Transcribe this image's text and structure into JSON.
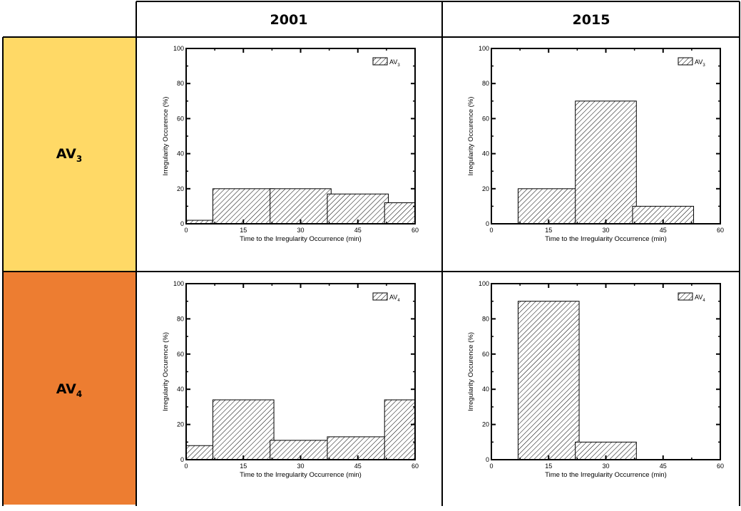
{
  "header": {
    "col_2001": "2001",
    "col_2015": "2015"
  },
  "rows": [
    {
      "label_main": "AV",
      "label_sub": "3",
      "color": "#FFD966"
    },
    {
      "label_main": "AV",
      "label_sub": "4",
      "color": "#ED7D31"
    }
  ],
  "chart_data": [
    {
      "id": "av3-2001",
      "type": "bar",
      "legend": {
        "main": "AV",
        "sub": "3",
        "position": "top-right"
      },
      "x": [
        0,
        15,
        30,
        45,
        60
      ],
      "values": [
        2,
        20,
        20,
        17,
        12
      ],
      "xlabel": "Time to the Irregularity Occurrence (min)",
      "ylabel": "Irregularity Occurence (%)",
      "xticks": [
        "0",
        "15",
        "30",
        "45",
        "60"
      ],
      "yticks": [
        "0",
        "20",
        "40",
        "60",
        "80",
        "100"
      ],
      "xlim": [
        0,
        60
      ],
      "ylim": [
        0,
        100
      ]
    },
    {
      "id": "av3-2015",
      "type": "bar",
      "legend": {
        "main": "AV",
        "sub": "3",
        "position": "top-right"
      },
      "x": [
        15,
        30,
        45
      ],
      "values": [
        20,
        70,
        10
      ],
      "xlabel": "Time to the Irregularity Occurrence (min)",
      "ylabel": "Irregularity Occurence (%)",
      "xticks": [
        "0",
        "15",
        "30",
        "45",
        "60"
      ],
      "yticks": [
        "0",
        "20",
        "40",
        "60",
        "80",
        "100"
      ],
      "xlim": [
        0,
        60
      ],
      "ylim": [
        0,
        100
      ]
    },
    {
      "id": "av4-2001",
      "type": "bar",
      "legend": {
        "main": "AV",
        "sub": "4",
        "position": "top-right"
      },
      "x": [
        0,
        15,
        30,
        45,
        60
      ],
      "values": [
        8,
        34,
        11,
        13,
        34
      ],
      "xlabel": "Time to the Irregularity Occurrence (min)",
      "ylabel": "Irregularity Occurence (%)",
      "xticks": [
        "0",
        "15",
        "30",
        "45",
        "60"
      ],
      "yticks": [
        "0",
        "20",
        "40",
        "60",
        "80",
        "100"
      ],
      "xlim": [
        0,
        60
      ],
      "ylim": [
        0,
        100
      ]
    },
    {
      "id": "av4-2015",
      "type": "bar",
      "legend": {
        "main": "AV",
        "sub": "4",
        "position": "top-right"
      },
      "x": [
        15,
        30
      ],
      "values": [
        90,
        10
      ],
      "xlabel": "Time to the Irregularity Occurrence (min)",
      "ylabel": "Irregularity Occurence (%)",
      "xticks": [
        "0",
        "15",
        "30",
        "45",
        "60"
      ],
      "yticks": [
        "0",
        "20",
        "40",
        "60",
        "80",
        "100"
      ],
      "xlim": [
        0,
        60
      ],
      "ylim": [
        0,
        100
      ]
    }
  ]
}
